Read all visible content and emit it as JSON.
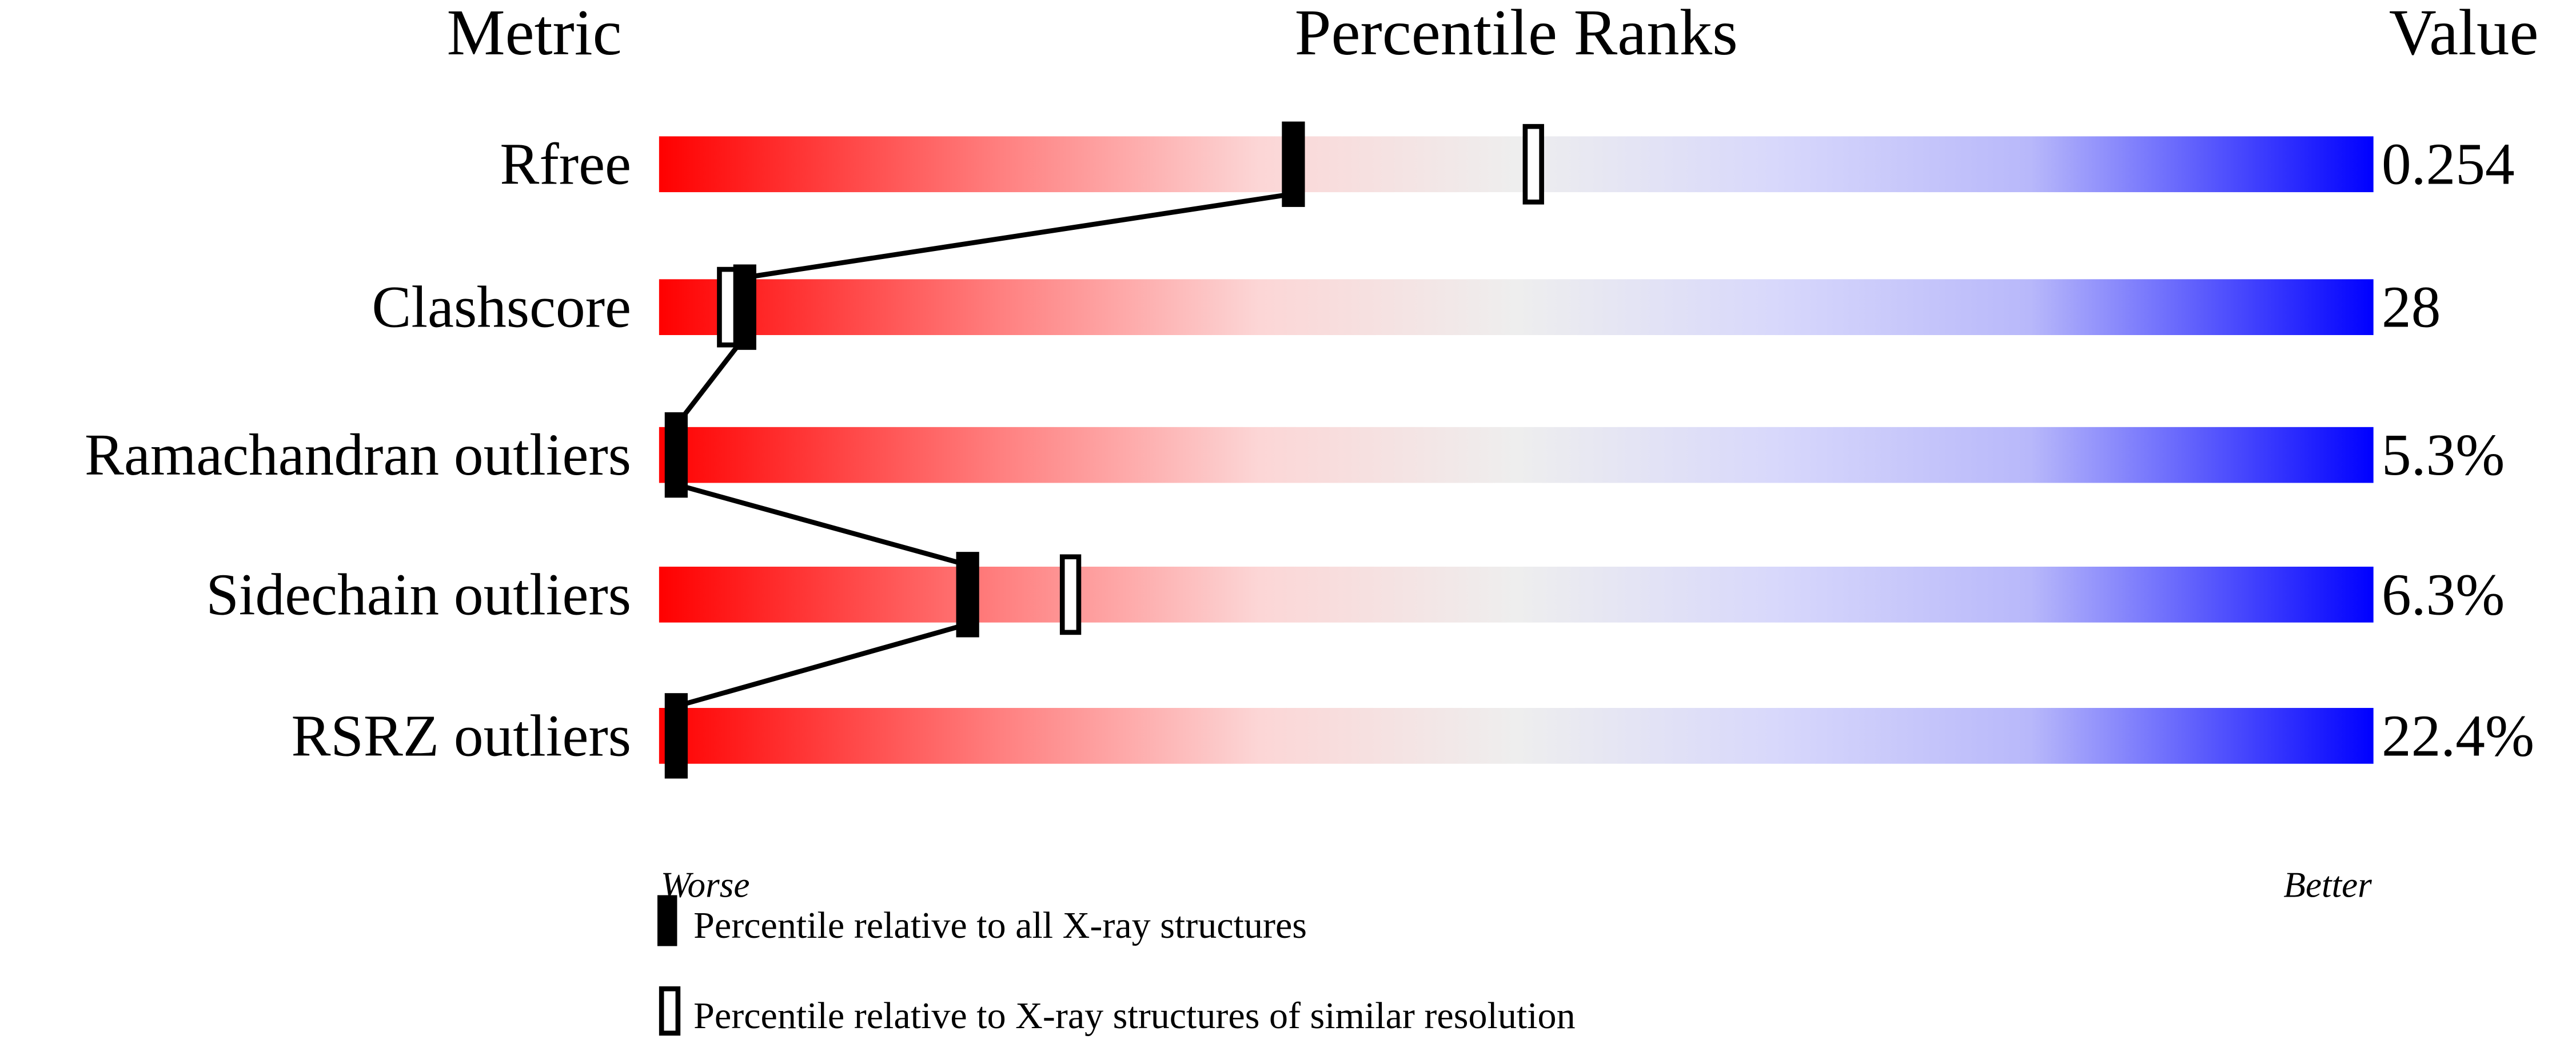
{
  "chart_data": {
    "type": "percentile-slider",
    "headers": {
      "metric": "Metric",
      "percentile": "Percentile Ranks",
      "value": "Value"
    },
    "axis": {
      "left_label": "Worse",
      "right_label": "Better",
      "range": [
        0,
        100
      ]
    },
    "gradient_colors": {
      "worse": "#ff0000",
      "middle": "#eeeeee",
      "better": "#0000ff"
    },
    "rows": [
      {
        "metric": "Rfree",
        "value": "0.254",
        "percentile_all": 37,
        "percentile_similar": 51
      },
      {
        "metric": "Clashscore",
        "value": "28",
        "percentile_all": 5,
        "percentile_similar": 4
      },
      {
        "metric": "Ramachandran outliers",
        "value": "5.3%",
        "percentile_all": 1,
        "percentile_similar": 1
      },
      {
        "metric": "Sidechain outliers",
        "value": "6.3%",
        "percentile_all": 18,
        "percentile_similar": 24
      },
      {
        "metric": "RSRZ outliers",
        "value": "22.4%",
        "percentile_all": 1,
        "percentile_similar": null
      }
    ],
    "legend": {
      "filled": "Percentile relative to all X-ray structures",
      "open": "Percentile relative to X-ray structures of similar resolution"
    }
  }
}
